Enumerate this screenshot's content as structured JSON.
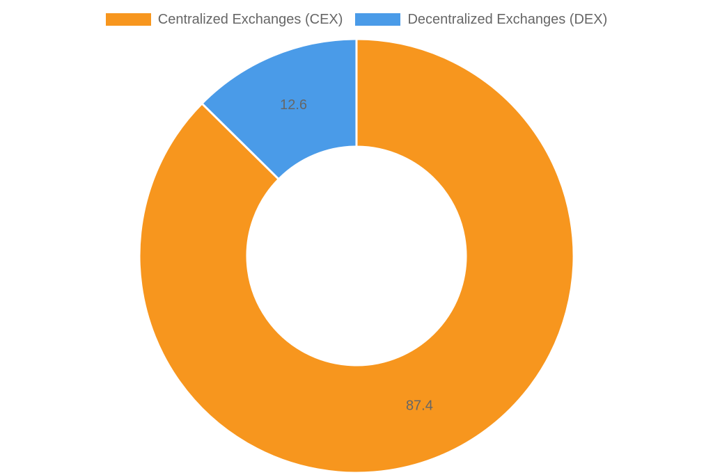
{
  "chart_data": {
    "type": "pie",
    "variant": "doughnut",
    "title": "",
    "legend_position": "top",
    "slices": [
      {
        "label": "Centralized Exchanges (CEX)",
        "value": 87.4,
        "color": "#F7961E"
      },
      {
        "label": "Decentralized Exchanges (DEX)",
        "value": 12.6,
        "color": "#4A9BE8"
      }
    ]
  }
}
